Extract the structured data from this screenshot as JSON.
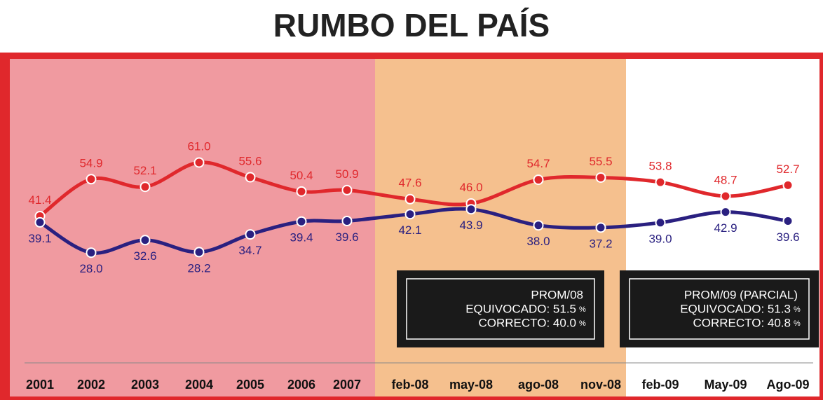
{
  "chart_data": {
    "type": "line",
    "title": "RUMBO DEL PAÍS",
    "categories": [
      "2001",
      "2002",
      "2003",
      "2004",
      "2005",
      "2006",
      "2007",
      "feb-08",
      "may-08",
      "ago-08",
      "nov-08",
      "feb-09",
      "May-09",
      "Ago-09"
    ],
    "series": [
      {
        "color": "#e0282c",
        "values": [
          41.4,
          54.9,
          52.1,
          61.0,
          55.6,
          50.4,
          50.9,
          47.6,
          46.0,
          54.7,
          55.5,
          53.8,
          48.7,
          52.7
        ],
        "value_labels": [
          "41.4",
          "54.9",
          "52.1",
          "61.0",
          "55.6",
          "50.4",
          "50.9",
          "47.6",
          "46.0",
          "54.7",
          "55.5",
          "53.8",
          "48.7",
          "52.7"
        ]
      },
      {
        "color": "#2a2080",
        "values": [
          39.1,
          28.0,
          32.6,
          28.2,
          34.7,
          39.4,
          39.6,
          42.1,
          43.9,
          38.0,
          37.2,
          39.0,
          42.9,
          39.6
        ],
        "value_labels": [
          "39.1",
          "28.0",
          "32.6",
          "28.2",
          "34.7",
          "39.4",
          "39.6",
          "42.1",
          "43.9",
          "38.0",
          "37.2",
          "39.0",
          "42.9",
          "39.6"
        ]
      }
    ],
    "annotations": [
      {
        "title": "PROM/08",
        "rows": [
          {
            "text": "EQUIVOCADO: 51.5",
            "unit": "%"
          },
          {
            "text": "CORRECTO: 40.0",
            "unit": "%"
          }
        ]
      },
      {
        "title": "PROM/09 (PARCIAL)",
        "rows": [
          {
            "text": "EQUIVOCADO: 51.3",
            "unit": "%"
          },
          {
            "text": "CORRECTO: 40.8",
            "unit": "%"
          }
        ]
      }
    ]
  }
}
